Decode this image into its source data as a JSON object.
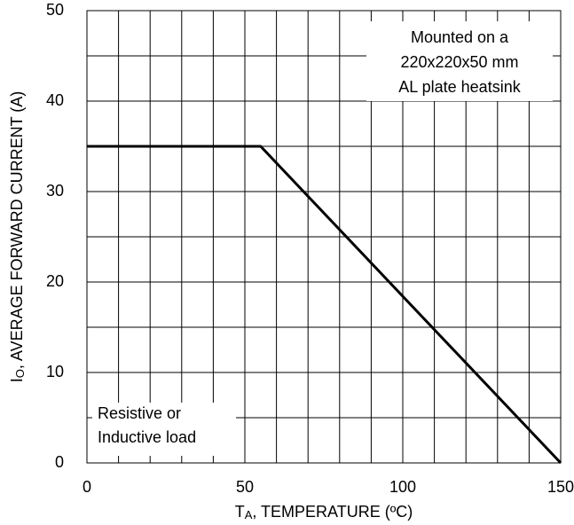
{
  "chart_data": {
    "type": "line",
    "x_label": {
      "main": "T",
      "sub": "A",
      "rest": ", TEMPERATURE (ºC)"
    },
    "y_label": {
      "main": "I",
      "sub": "O",
      "rest": ", AVERAGE FORWARD CURRENT (A)"
    },
    "series": [
      {
        "name": null,
        "color": "#000000",
        "x": [
          0,
          55,
          150
        ],
        "values": [
          35,
          35,
          0
        ]
      }
    ],
    "xlim": [
      0,
      150
    ],
    "xticks": [
      0,
      50,
      100,
      150
    ],
    "ylim": [
      0,
      50
    ],
    "yticks": [
      0,
      10,
      20,
      30,
      40,
      50
    ],
    "xgrid": [
      0,
      10,
      20,
      30,
      40,
      50,
      60,
      70,
      80,
      90,
      100,
      110,
      120,
      130,
      140,
      150
    ],
    "ygrid": [
      0,
      5,
      10,
      15,
      20,
      25,
      30,
      35,
      40,
      45,
      50
    ],
    "grid": true,
    "annotations": [
      {
        "lines": [
          "Mounted on a",
          "220x220x50 mm",
          "AL plate heatsink"
        ]
      },
      {
        "lines": [
          "Resistive or",
          "Inductive load"
        ]
      }
    ]
  }
}
